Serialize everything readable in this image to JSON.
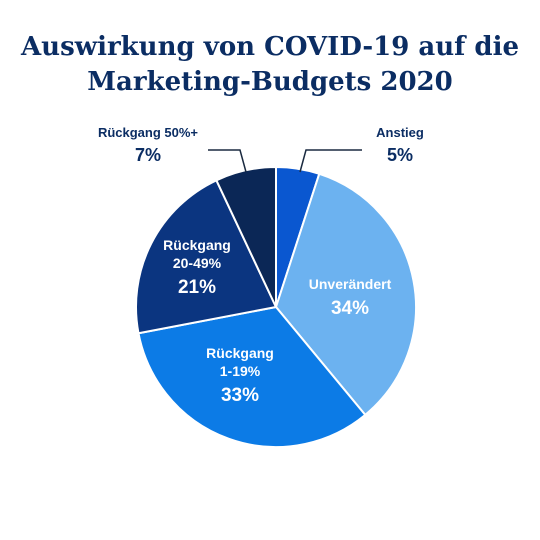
{
  "chart_data": {
    "type": "pie",
    "title_lines": [
      "Auswirkung von COVID-19 auf die",
      "Marketing-Budgets 2020"
    ],
    "slices": [
      {
        "label_lines": [
          "Anstieg"
        ],
        "value": 5,
        "value_label": "5%",
        "color": "#0a57d0"
      },
      {
        "label_lines": [
          "Unverändert"
        ],
        "value": 34,
        "value_label": "34%",
        "color": "#6cb2f0"
      },
      {
        "label_lines": [
          "Rückgang",
          "1-19%"
        ],
        "value": 33,
        "value_label": "33%",
        "color": "#0c7be6"
      },
      {
        "label_lines": [
          "Rückgang",
          "20-49%"
        ],
        "value": 21,
        "value_label": "21%",
        "color": "#0b3580"
      },
      {
        "label_lines": [
          "Rückgang 50%+"
        ],
        "value": 7,
        "value_label": "7%",
        "color": "#0b2756"
      }
    ],
    "start_angle_deg": 0,
    "direction": "clockwise",
    "text_color_dark": "#0b2d63",
    "text_color_light": "#ffffff"
  }
}
